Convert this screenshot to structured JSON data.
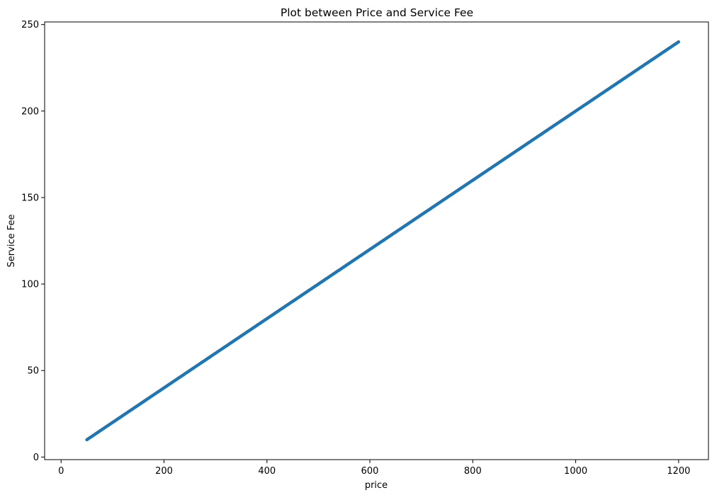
{
  "chart_data": {
    "type": "scatter",
    "title": "Plot between Price and Service Fee",
    "xlabel": "price",
    "ylabel": "Service Fee",
    "xlim": [
      -32,
      1258
    ],
    "ylim": [
      -1.5,
      251.5
    ],
    "xticks": [
      0,
      200,
      400,
      600,
      800,
      1000,
      1200
    ],
    "yticks": [
      0,
      50,
      100,
      150,
      200,
      250
    ],
    "grid": false,
    "series": [
      {
        "color": "#1f77b4",
        "relation": "service fee = 0.2 × price",
        "x_range": [
          50,
          1200
        ],
        "x_step": 1,
        "y_multiplier": 0.2
      }
    ]
  }
}
